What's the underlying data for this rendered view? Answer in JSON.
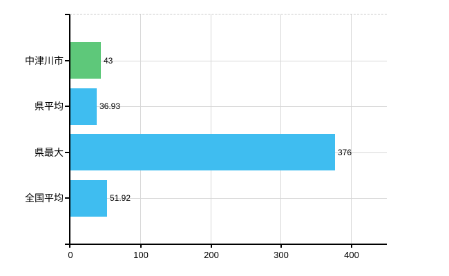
{
  "chart_data": {
    "type": "bar",
    "orientation": "horizontal",
    "categories": [
      "中津川市",
      "県平均",
      "県最大",
      "全国平均"
    ],
    "values": [
      43,
      36.93,
      376,
      51.92
    ],
    "value_labels": [
      "43",
      "36.93",
      "376",
      "51.92"
    ],
    "bar_colors": [
      "#5ec87a",
      "#3fbdf0",
      "#3fbdf0",
      "#3fbdf0"
    ],
    "xticks": [
      0,
      100,
      200,
      300,
      400
    ],
    "xtick_labels": [
      "0",
      "100",
      "200",
      "300",
      "400"
    ],
    "xlim": [
      0,
      451
    ],
    "grid": true,
    "legend": false,
    "title": "",
    "xlabel": "",
    "ylabel": "",
    "colors": {
      "bar_highlight": "#5ec87a",
      "bar_default": "#3fbdf0",
      "grid": "#d6d6d6",
      "plot_top_border": "#c9c9c9",
      "axis": "#000000",
      "text": "#000000",
      "background": "#ffffff"
    }
  }
}
